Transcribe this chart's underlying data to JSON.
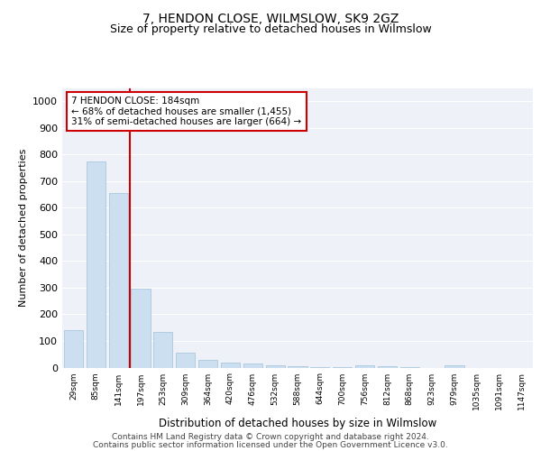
{
  "title": "7, HENDON CLOSE, WILMSLOW, SK9 2GZ",
  "subtitle": "Size of property relative to detached houses in Wilmslow",
  "xlabel": "Distribution of detached houses by size in Wilmslow",
  "ylabel": "Number of detached properties",
  "bar_color": "#ccdff0",
  "bar_edge_color": "#a0c0dc",
  "categories": [
    "29sqm",
    "85sqm",
    "141sqm",
    "197sqm",
    "253sqm",
    "309sqm",
    "364sqm",
    "420sqm",
    "476sqm",
    "532sqm",
    "588sqm",
    "644sqm",
    "700sqm",
    "756sqm",
    "812sqm",
    "868sqm",
    "923sqm",
    "979sqm",
    "1035sqm",
    "1091sqm",
    "1147sqm"
  ],
  "values": [
    140,
    775,
    655,
    295,
    135,
    57,
    28,
    18,
    14,
    7,
    5,
    3,
    3,
    8,
    5,
    1,
    0,
    7,
    0,
    0,
    0
  ],
  "property_line_x": 2.5,
  "annotation_line1": "7 HENDON CLOSE: 184sqm",
  "annotation_line2": "← 68% of detached houses are smaller (1,455)",
  "annotation_line3": "31% of semi-detached houses are larger (664) →",
  "annotation_box_color": "#ffffff",
  "annotation_box_edge_color": "#cc0000",
  "vline_color": "#cc0000",
  "ylim": [
    0,
    1050
  ],
  "yticks": [
    0,
    100,
    200,
    300,
    400,
    500,
    600,
    700,
    800,
    900,
    1000
  ],
  "bg_color": "#eef2f8",
  "grid_color": "#ffffff",
  "footer_line1": "Contains HM Land Registry data © Crown copyright and database right 2024.",
  "footer_line2": "Contains public sector information licensed under the Open Government Licence v3.0.",
  "title_fontsize": 10,
  "subtitle_fontsize": 9
}
